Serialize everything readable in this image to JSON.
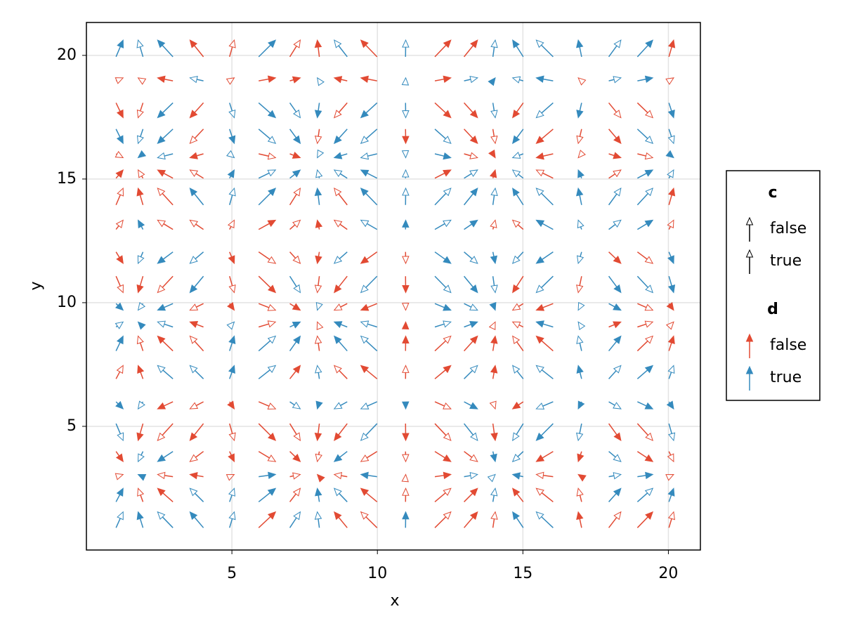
{
  "chart_data": {
    "type": "quiver",
    "xlabel": "x",
    "ylabel": "y",
    "xlim": [
      0,
      21.1
    ],
    "ylim": [
      0,
      21.33
    ],
    "xticks": [
      5,
      10,
      15,
      20
    ],
    "yticks": [
      5,
      10,
      15,
      20
    ],
    "grid": true,
    "legend_position": "right",
    "x": [
      1.14,
      1.86,
      2.71,
      3.79,
      5.0,
      6.21,
      7.17,
      7.97,
      8.74,
      9.71,
      10.97,
      12.25,
      13.21,
      14.01,
      14.83,
      15.75,
      16.96,
      18.16,
      19.2,
      20.1
    ],
    "y": [
      20.28,
      19.03,
      17.78,
      16.73,
      15.94,
      15.2,
      14.29,
      13.15,
      11.82,
      10.74,
      9.83,
      9.12,
      8.35,
      7.19,
      5.85,
      4.77,
      3.78,
      3.01,
      2.22,
      1.22
    ],
    "u": [
      0.42,
      -0.29,
      -0.91,
      -0.8,
      0.28,
      1.0,
      0.62,
      -0.12,
      -0.77,
      -0.96,
      0.01,
      0.95,
      0.8,
      0.14,
      -0.63,
      -1.0,
      -0.2,
      0.72,
      0.91,
      0.28
    ],
    "v": [
      0.99,
      0.18,
      -0.88,
      -0.85,
      -0.23,
      0.49,
      0.99,
      0.55,
      -0.68,
      -0.97,
      -0.39,
      0.3,
      0.88,
      0.79,
      -0.42,
      -1.0,
      -0.6,
      0.13,
      0.8,
      0.94
    ],
    "d": [
      [
        true,
        true,
        true,
        false,
        false,
        true,
        false,
        false,
        true,
        false,
        true,
        false,
        false,
        true,
        true,
        true,
        true,
        true,
        true,
        false
      ],
      [
        false,
        false,
        false,
        true,
        false,
        false,
        false,
        true,
        false,
        false,
        true,
        false,
        true,
        true,
        true,
        true,
        false,
        true,
        true,
        false
      ],
      [
        false,
        false,
        true,
        false,
        true,
        true,
        true,
        true,
        false,
        true,
        true,
        false,
        false,
        true,
        false,
        true,
        true,
        false,
        false,
        true
      ],
      [
        true,
        true,
        true,
        false,
        true,
        true,
        true,
        false,
        true,
        true,
        false,
        true,
        false,
        false,
        true,
        false,
        false,
        false,
        true,
        true
      ],
      [
        false,
        true,
        true,
        false,
        true,
        false,
        false,
        true,
        true,
        true,
        true,
        true,
        false,
        false,
        true,
        false,
        false,
        false,
        false,
        true
      ],
      [
        false,
        false,
        false,
        false,
        true,
        true,
        true,
        true,
        true,
        true,
        true,
        false,
        true,
        false,
        true,
        false,
        true,
        false,
        true,
        true
      ],
      [
        false,
        false,
        false,
        true,
        true,
        true,
        false,
        true,
        false,
        true,
        true,
        true,
        true,
        true,
        true,
        true,
        true,
        true,
        true,
        false
      ],
      [
        false,
        true,
        false,
        false,
        false,
        false,
        false,
        false,
        false,
        true,
        true,
        true,
        true,
        false,
        false,
        true,
        true,
        true,
        true,
        false
      ],
      [
        false,
        true,
        true,
        true,
        false,
        false,
        false,
        false,
        true,
        false,
        false,
        true,
        true,
        true,
        true,
        true,
        true,
        false,
        false,
        true
      ],
      [
        false,
        false,
        false,
        true,
        false,
        false,
        true,
        false,
        false,
        true,
        false,
        true,
        true,
        true,
        false,
        true,
        false,
        true,
        true,
        true
      ],
      [
        true,
        true,
        true,
        false,
        false,
        false,
        false,
        true,
        false,
        false,
        false,
        true,
        true,
        true,
        false,
        false,
        true,
        true,
        false,
        false
      ],
      [
        true,
        true,
        true,
        false,
        true,
        false,
        true,
        false,
        true,
        true,
        false,
        true,
        true,
        false,
        false,
        true,
        true,
        false,
        false,
        false
      ],
      [
        true,
        false,
        false,
        false,
        true,
        true,
        true,
        false,
        true,
        true,
        false,
        false,
        false,
        false,
        false,
        false,
        true,
        true,
        false,
        false
      ],
      [
        false,
        false,
        true,
        true,
        true,
        true,
        false,
        true,
        false,
        false,
        false,
        false,
        true,
        false,
        true,
        true,
        true,
        true,
        true,
        true
      ],
      [
        true,
        true,
        false,
        false,
        false,
        false,
        true,
        true,
        true,
        true,
        true,
        false,
        true,
        false,
        false,
        true,
        true,
        true,
        true,
        true
      ],
      [
        true,
        false,
        false,
        false,
        false,
        false,
        false,
        false,
        false,
        true,
        false,
        false,
        true,
        false,
        true,
        true,
        true,
        false,
        false,
        true
      ],
      [
        false,
        true,
        true,
        false,
        false,
        false,
        false,
        false,
        true,
        false,
        false,
        false,
        false,
        true,
        true,
        false,
        false,
        true,
        false,
        false
      ],
      [
        false,
        true,
        false,
        false,
        false,
        true,
        false,
        false,
        false,
        true,
        false,
        false,
        true,
        true,
        true,
        false,
        false,
        true,
        true,
        false
      ],
      [
        true,
        false,
        false,
        true,
        true,
        true,
        false,
        true,
        true,
        false,
        false,
        false,
        false,
        true,
        false,
        false,
        false,
        true,
        true,
        true
      ],
      [
        true,
        true,
        true,
        true,
        true,
        false,
        true,
        true,
        false,
        false,
        true,
        false,
        false,
        false,
        true,
        true,
        false,
        false,
        false,
        false
      ]
    ],
    "c": [
      [
        false,
        true,
        false,
        false,
        true,
        false,
        true,
        false,
        true,
        false,
        true,
        false,
        false,
        true,
        false,
        true,
        false,
        true,
        false,
        false
      ],
      [
        true,
        true,
        false,
        true,
        true,
        false,
        false,
        true,
        false,
        false,
        true,
        false,
        true,
        false,
        true,
        false,
        true,
        true,
        false,
        true
      ],
      [
        false,
        true,
        false,
        false,
        true,
        false,
        true,
        false,
        true,
        false,
        true,
        false,
        false,
        true,
        false,
        true,
        false,
        true,
        true,
        false
      ],
      [
        false,
        true,
        false,
        true,
        false,
        true,
        false,
        true,
        false,
        true,
        false,
        true,
        false,
        true,
        false,
        false,
        true,
        false,
        true,
        true
      ],
      [
        true,
        false,
        true,
        false,
        true,
        true,
        false,
        true,
        false,
        true,
        true,
        false,
        true,
        false,
        true,
        false,
        true,
        false,
        true,
        false
      ],
      [
        false,
        true,
        false,
        true,
        false,
        true,
        false,
        true,
        true,
        false,
        true,
        false,
        true,
        false,
        true,
        true,
        false,
        true,
        false,
        true
      ],
      [
        true,
        false,
        true,
        false,
        true,
        false,
        true,
        false,
        true,
        false,
        true,
        true,
        false,
        true,
        false,
        true,
        false,
        true,
        true,
        false
      ],
      [
        true,
        false,
        true,
        true,
        true,
        false,
        true,
        false,
        true,
        true,
        false,
        true,
        false,
        true,
        true,
        false,
        true,
        true,
        false,
        true
      ],
      [
        false,
        true,
        false,
        true,
        false,
        true,
        true,
        false,
        true,
        false,
        true,
        false,
        true,
        false,
        true,
        false,
        true,
        false,
        true,
        false
      ],
      [
        true,
        false,
        true,
        false,
        true,
        false,
        true,
        true,
        false,
        true,
        false,
        true,
        false,
        true,
        false,
        true,
        true,
        false,
        true,
        false
      ],
      [
        false,
        true,
        false,
        true,
        false,
        true,
        false,
        true,
        true,
        false,
        true,
        false,
        true,
        false,
        true,
        false,
        true,
        false,
        true,
        false
      ],
      [
        true,
        false,
        true,
        false,
        true,
        true,
        false,
        true,
        false,
        true,
        false,
        true,
        false,
        true,
        true,
        false,
        true,
        false,
        true,
        true
      ],
      [
        false,
        true,
        false,
        true,
        false,
        true,
        false,
        true,
        false,
        true,
        false,
        true,
        false,
        false,
        true,
        false,
        true,
        false,
        true,
        false
      ],
      [
        true,
        false,
        true,
        true,
        false,
        true,
        false,
        true,
        true,
        false,
        true,
        false,
        true,
        false,
        true,
        true,
        false,
        true,
        false,
        true
      ],
      [
        false,
        true,
        false,
        true,
        false,
        true,
        true,
        false,
        true,
        true,
        false,
        true,
        false,
        true,
        false,
        true,
        false,
        true,
        false,
        false
      ],
      [
        true,
        false,
        true,
        false,
        true,
        false,
        true,
        false,
        false,
        true,
        false,
        true,
        true,
        false,
        true,
        false,
        true,
        false,
        true,
        true
      ],
      [
        false,
        true,
        false,
        true,
        false,
        true,
        false,
        true,
        false,
        true,
        true,
        false,
        true,
        false,
        true,
        false,
        false,
        true,
        false,
        true
      ],
      [
        true,
        false,
        true,
        false,
        true,
        false,
        true,
        false,
        true,
        false,
        true,
        false,
        true,
        true,
        false,
        true,
        false,
        true,
        false,
        true
      ],
      [
        false,
        true,
        false,
        true,
        true,
        false,
        true,
        false,
        true,
        false,
        true,
        true,
        false,
        true,
        false,
        true,
        true,
        false,
        true,
        false
      ],
      [
        true,
        false,
        true,
        false,
        true,
        false,
        true,
        true,
        false,
        true,
        false,
        true,
        false,
        true,
        false,
        true,
        false,
        true,
        false,
        true
      ]
    ],
    "legend": [
      {
        "title": "c",
        "labels": [
          "false",
          "true"
        ],
        "color": "#000000"
      },
      {
        "title": "d",
        "labels": [
          "false",
          "true"
        ],
        "colors": [
          "#e24a33",
          "#348abd"
        ]
      }
    ]
  }
}
